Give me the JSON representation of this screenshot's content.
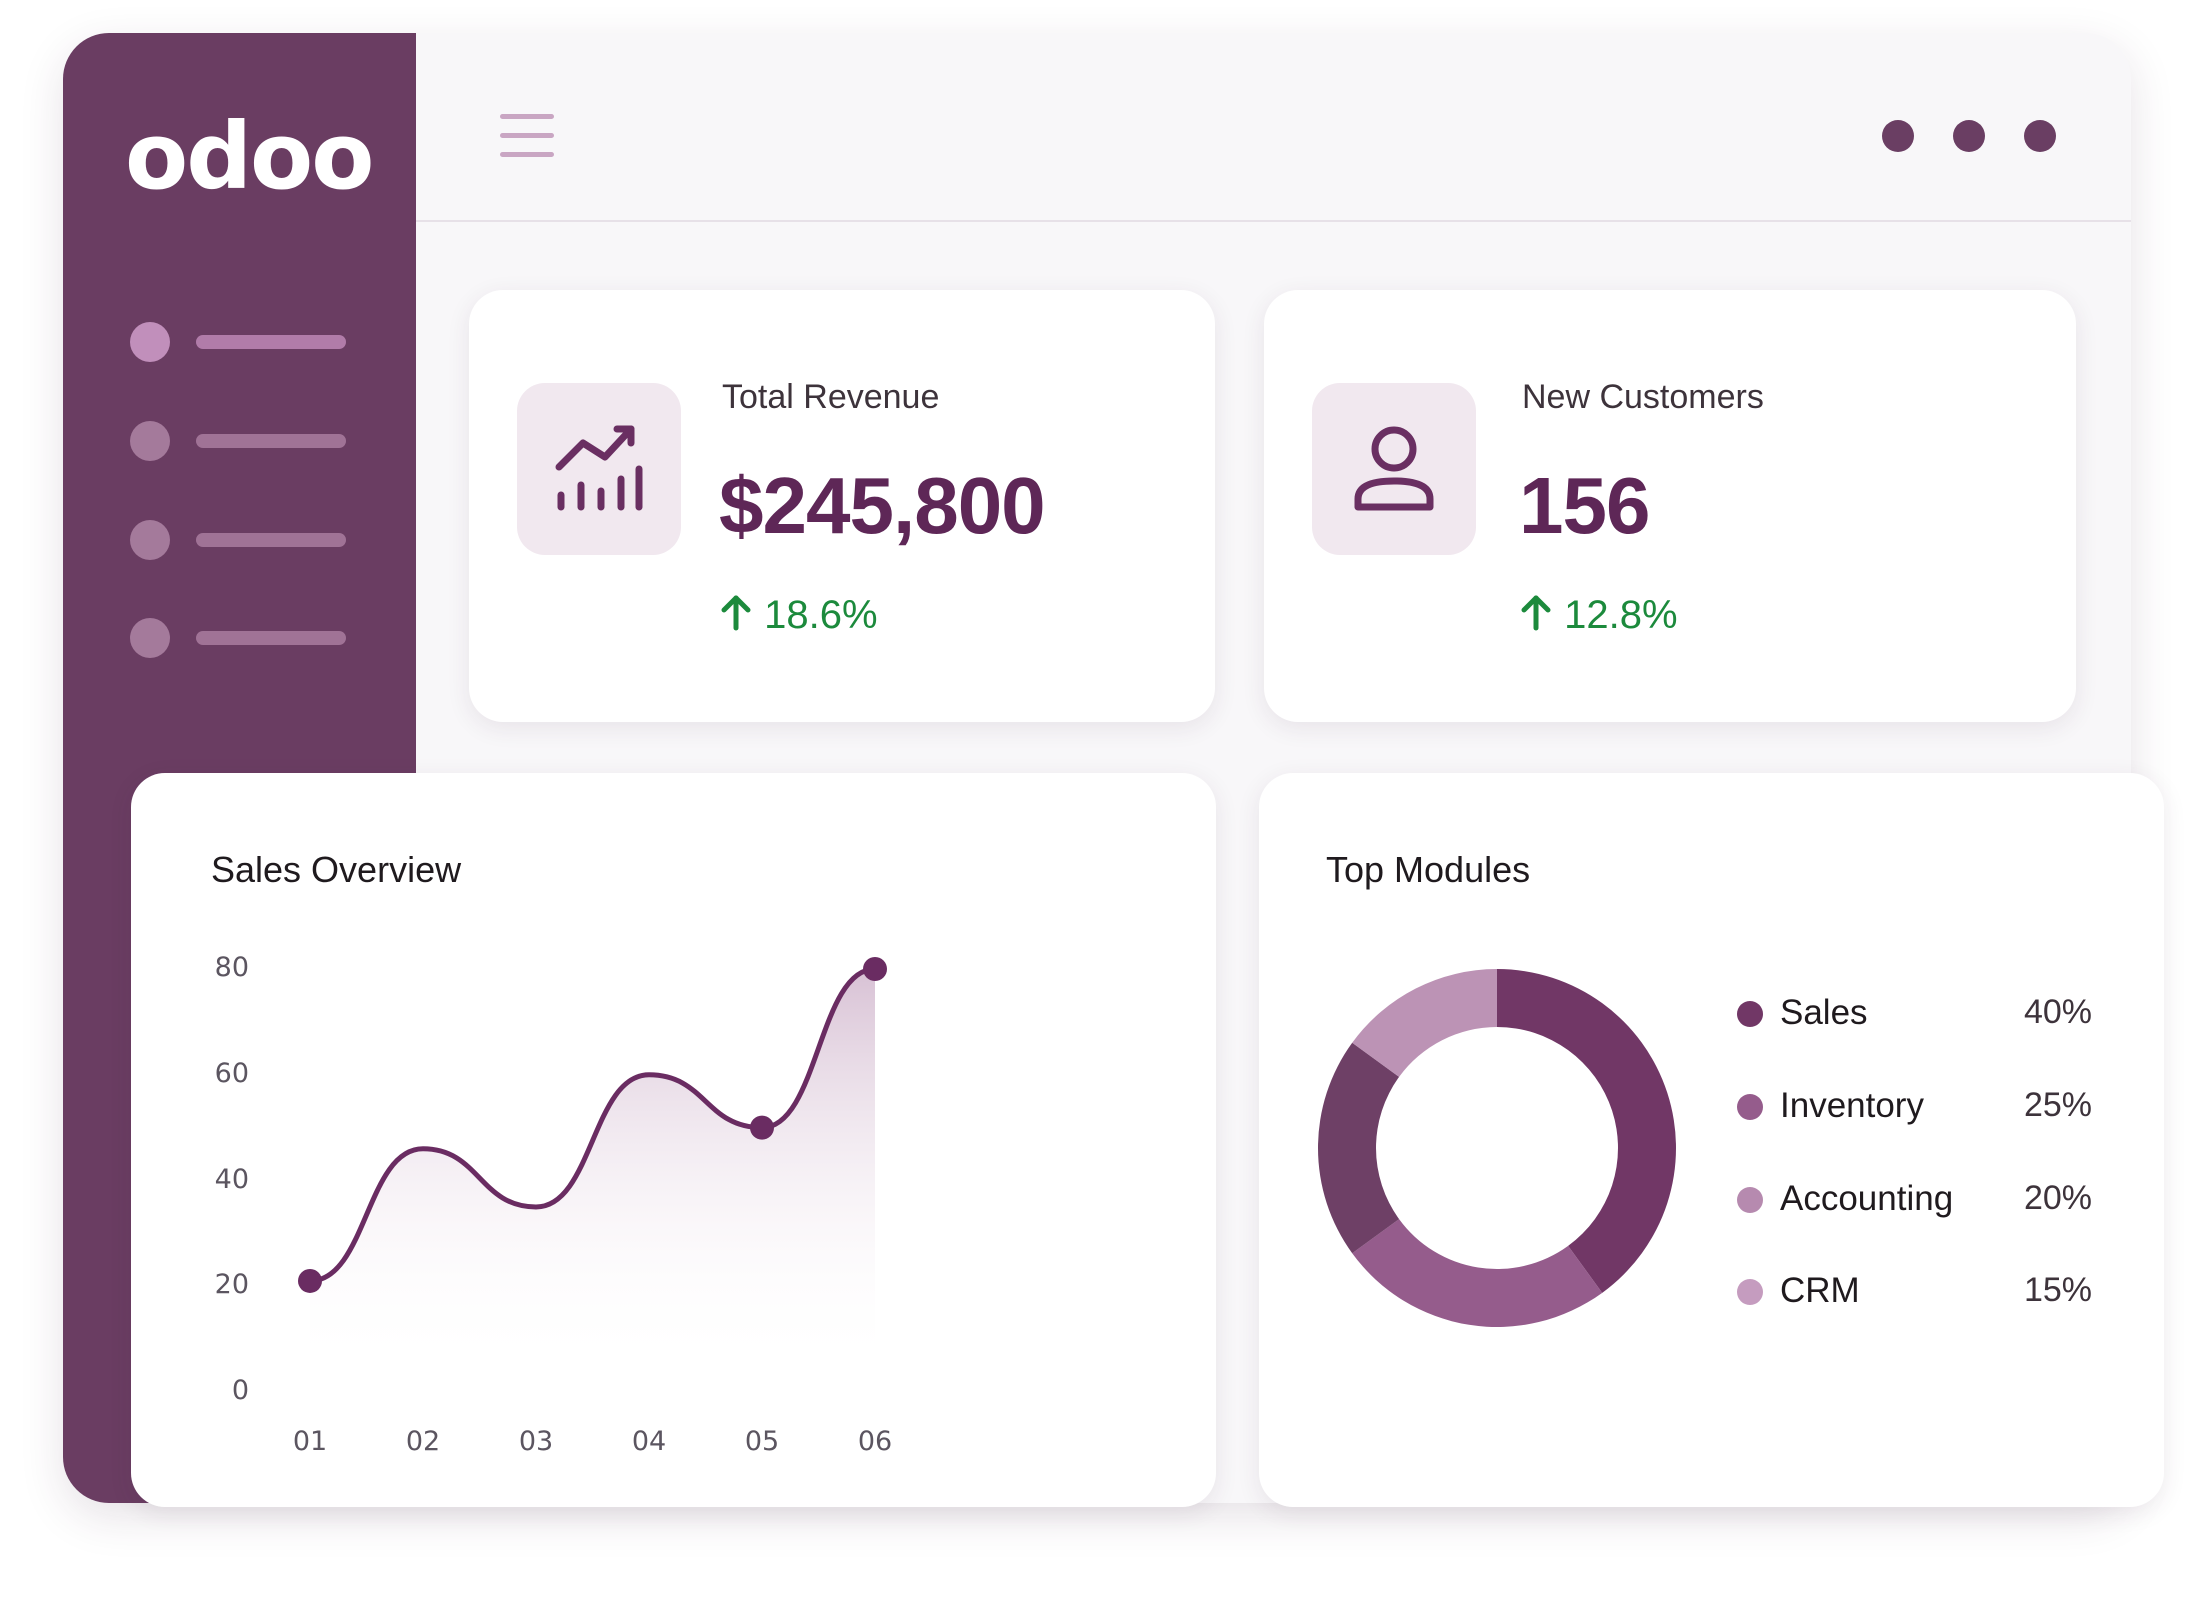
{
  "app": {
    "logo_text": "odoo"
  },
  "sidebar": {
    "items": [
      {
        "state": "active"
      },
      {
        "state": "default"
      },
      {
        "state": "default"
      },
      {
        "state": "default"
      }
    ]
  },
  "colors": {
    "brand": "#6a3d62",
    "value_text": "#5e2757",
    "positive": "#1c8a3c"
  },
  "kpis": {
    "revenue": {
      "label": "Total Revenue",
      "value": "$245,800",
      "change": "18.6%",
      "icon": "trending-up-chart-icon"
    },
    "customers": {
      "label": "New Customers",
      "value": "156",
      "change": "12.8%",
      "icon": "user-icon"
    }
  },
  "chart_data": [
    {
      "type": "line",
      "title": "Sales Overview",
      "categories": [
        "01",
        "02",
        "03",
        "04",
        "05",
        "06"
      ],
      "values": [
        21,
        46,
        35,
        60,
        50,
        80
      ],
      "ylim": [
        0,
        80
      ],
      "yticks": [
        "0",
        "20",
        "40",
        "60",
        "80"
      ],
      "grid": false,
      "area_fill": true
    },
    {
      "type": "pie",
      "title": "Top Modules",
      "donut": true,
      "legend_position": "right",
      "slices": [
        {
          "label": "Sales",
          "value": 40,
          "pct_text": "40%",
          "color": "#713766"
        },
        {
          "label": "Inventory",
          "value": 25,
          "pct_text": "25%",
          "color": "#955c8c"
        },
        {
          "label": "Accounting",
          "value": 20,
          "pct_text": "20%",
          "color": "#b68aaf"
        },
        {
          "label": "CRM",
          "value": 15,
          "pct_text": "15%",
          "color": "#c59cbf"
        }
      ],
      "drawn_colors": [
        "#713766",
        "#955c8c",
        "#6e4066",
        "#bc93b5"
      ]
    }
  ]
}
